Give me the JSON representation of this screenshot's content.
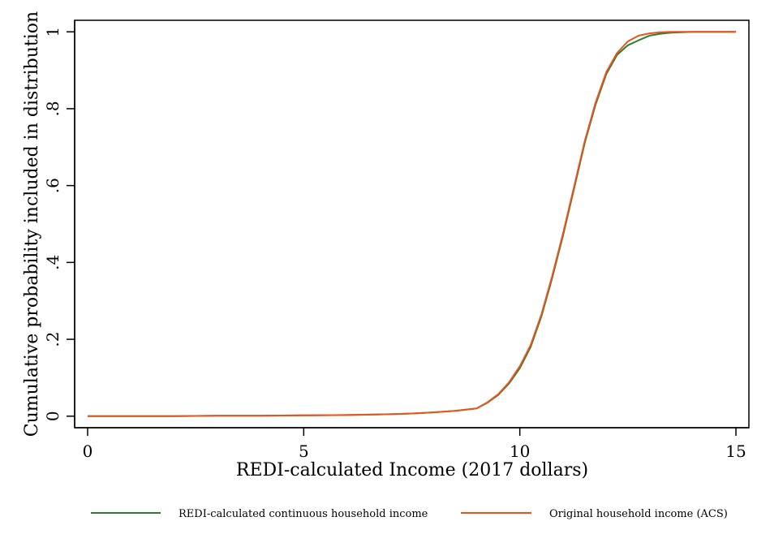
{
  "chart_data": {
    "type": "line",
    "title": "",
    "xlabel": "REDI-calculated Income (2017 dollars)",
    "ylabel": "Cumulative probability included in distribution",
    "xlim": [
      -0.3,
      15.3
    ],
    "ylim": [
      -0.03,
      1.03
    ],
    "xticks": [
      0,
      5,
      10,
      15
    ],
    "xtick_labels": [
      "0",
      "5",
      "10",
      "15"
    ],
    "yticks": [
      0,
      0.2,
      0.4,
      0.6,
      0.8,
      1
    ],
    "ytick_labels": [
      "0",
      ".2",
      ".4",
      ".6",
      ".8",
      "1"
    ],
    "grid": false,
    "legend_position": "bottom",
    "series": [
      {
        "name": "REDI-calculated continuous household income",
        "color": "#2e7d32",
        "x": [
          0,
          1,
          2,
          3,
          4,
          5,
          6,
          7,
          7.5,
          8,
          8.5,
          9,
          9.25,
          9.5,
          9.75,
          10,
          10.25,
          10.5,
          10.75,
          11,
          11.25,
          11.5,
          11.75,
          12,
          12.25,
          12.5,
          12.75,
          13,
          13.25,
          13.5,
          13.75,
          14,
          14.5,
          15
        ],
        "y": [
          0,
          0,
          0,
          0.001,
          0.001,
          0.002,
          0.003,
          0.005,
          0.007,
          0.01,
          0.014,
          0.02,
          0.035,
          0.055,
          0.085,
          0.125,
          0.18,
          0.26,
          0.36,
          0.47,
          0.59,
          0.71,
          0.81,
          0.89,
          0.94,
          0.965,
          0.978,
          0.99,
          0.995,
          0.998,
          0.999,
          1,
          1,
          1
        ]
      },
      {
        "name": "Original household income (ACS)",
        "color": "#e8541c",
        "x": [
          0,
          1,
          2,
          3,
          4,
          5,
          6,
          7,
          7.5,
          8,
          8.5,
          9,
          9.25,
          9.5,
          9.75,
          10,
          10.25,
          10.5,
          10.75,
          11,
          11.25,
          11.5,
          11.75,
          12,
          12.25,
          12.5,
          12.75,
          13,
          13.25,
          13.5,
          13.75,
          14,
          14.5,
          15
        ],
        "y": [
          0,
          0,
          0,
          0.001,
          0.001,
          0.002,
          0.003,
          0.005,
          0.007,
          0.01,
          0.014,
          0.02,
          0.036,
          0.057,
          0.088,
          0.13,
          0.185,
          0.265,
          0.365,
          0.475,
          0.595,
          0.715,
          0.815,
          0.895,
          0.945,
          0.975,
          0.99,
          0.996,
          0.999,
          1,
          1,
          1,
          1,
          1
        ]
      }
    ]
  }
}
